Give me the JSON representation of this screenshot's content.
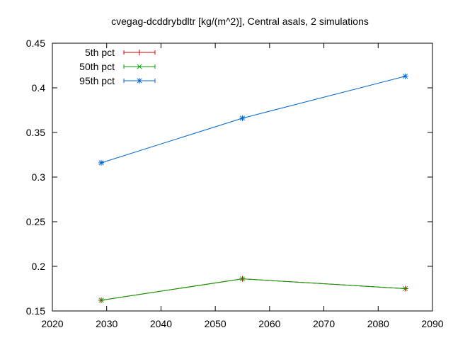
{
  "chart_data": {
    "type": "line",
    "title": "cvegag-dcddrybdltr [kg/(m^2)], Central asals, 2 simulations",
    "xlabel": "",
    "ylabel": "",
    "xlim": [
      2020,
      2090
    ],
    "ylim": [
      0.15,
      0.45
    ],
    "xticks": [
      2020,
      2030,
      2040,
      2050,
      2060,
      2070,
      2080,
      2090
    ],
    "yticks": [
      0.15,
      0.2,
      0.25,
      0.3,
      0.35,
      0.4,
      0.45
    ],
    "ytick_labels": [
      "0.15",
      "0.2",
      "0.25",
      "0.3",
      "0.35",
      "0.4",
      "0.45"
    ],
    "grid": false,
    "legend_position": "top-left",
    "x": [
      2029,
      2055,
      2085
    ],
    "series": [
      {
        "name": "5th pct",
        "color": "#cc0000",
        "marker": "plus",
        "values": [
          0.162,
          0.186,
          0.175
        ]
      },
      {
        "name": "50th pct",
        "color": "#00a000",
        "marker": "cross",
        "values": [
          0.162,
          0.186,
          0.175
        ]
      },
      {
        "name": "95th pct",
        "color": "#0066cc",
        "marker": "star",
        "values": [
          0.316,
          0.366,
          0.413
        ]
      }
    ]
  }
}
